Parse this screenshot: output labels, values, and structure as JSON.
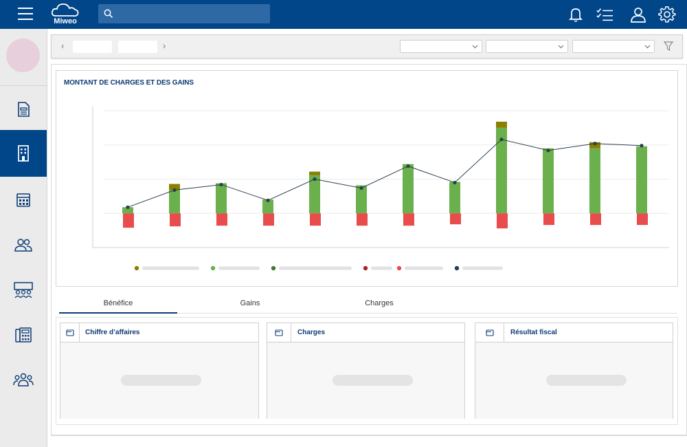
{
  "app": {
    "name": "Miweo"
  },
  "search": {
    "placeholder": ""
  },
  "chart": {
    "title": "MONTANT DE CHARGES ET DES GAINS"
  },
  "tabs": [
    {
      "label": "Bénéfice",
      "active": true
    },
    {
      "label": "Gains",
      "active": false
    },
    {
      "label": "Charges",
      "active": false
    }
  ],
  "panels": [
    {
      "title": "Chiffre d’affaires"
    },
    {
      "title": "Charges"
    },
    {
      "title": "Résultat fiscal"
    }
  ],
  "icons": {
    "topbar": [
      "menu-icon",
      "cloud-logo-icon",
      "search-icon",
      "bell-icon",
      "checklist-icon",
      "user-icon",
      "gear-icon"
    ],
    "sidebar": [
      "document-icon",
      "building-icon",
      "calculator-icon",
      "users-icon",
      "team-grid-icon",
      "office-phone-icon",
      "group-icon"
    ]
  },
  "colors": {
    "primary": "#02468a",
    "gain_dark": "#8a8000",
    "gain_green": "#6ab04c",
    "charge_red": "#e84c4c",
    "line": "#2c3e50"
  },
  "chart_data": {
    "type": "bar",
    "title": "MONTANT DE CHARGES ET DES GAINS",
    "categories": [
      "",
      "",
      "",
      "",
      "",
      "",
      "",
      "",
      "",
      "",
      "",
      ""
    ],
    "series": [
      {
        "stack": "pos",
        "color": "#6ab04c",
        "values": [
          0.9,
          3.4,
          4.4,
          2.0,
          5.6,
          4.1,
          7.2,
          4.6,
          12.5,
          9.5,
          9.5,
          9.8
        ]
      },
      {
        "stack": "pos",
        "color": "#8a8000",
        "values": [
          0,
          0.9,
          0,
          0,
          0.5,
          0,
          0,
          0,
          0.9,
          0,
          0.9,
          0
        ]
      },
      {
        "stack": "neg",
        "color": "#e84c4c",
        "values": [
          -2.1,
          -1.9,
          -1.8,
          -1.8,
          -1.8,
          -1.8,
          -1.8,
          -1.6,
          -2.2,
          -1.7,
          -1.7,
          -1.7
        ]
      },
      {
        "type": "line",
        "color": "#2c3e50",
        "values": [
          0.9,
          3.4,
          4.2,
          1.9,
          5.0,
          3.7,
          6.9,
          4.5,
          10.8,
          9.2,
          10.2,
          9.9
        ]
      }
    ],
    "ylim": [
      -5,
      15
    ],
    "grid": true,
    "legend": "bottom",
    "legend_items": [
      {
        "color": "#8a8000"
      },
      {
        "color": "#6ab04c"
      },
      {
        "color": "#3a7d2e"
      },
      {
        "color": "#b22222"
      },
      {
        "color": "#e84c4c"
      },
      {
        "color": "#2c3e50"
      }
    ]
  }
}
